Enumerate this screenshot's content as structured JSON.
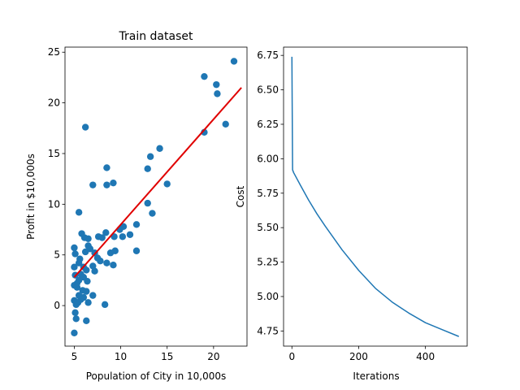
{
  "figure": {
    "background": "#ffffff"
  },
  "chart_data": [
    {
      "type": "scatter",
      "title": "Train dataset",
      "xlabel": "Population of City in 10,000s",
      "ylabel": "Profit in $10,000s",
      "xlim": [
        4.0,
        23.6
      ],
      "ylim": [
        -4.0,
        25.5
      ],
      "xticks": [
        5,
        10,
        15,
        20
      ],
      "yticks": [
        0,
        5,
        10,
        15,
        20,
        25
      ],
      "series": [
        {
          "kind": "scatter",
          "color": "#1f77b4",
          "points": [
            [
              22.2,
              24.1
            ],
            [
              19.0,
              22.6
            ],
            [
              20.3,
              21.8
            ],
            [
              20.4,
              20.9
            ],
            [
              21.3,
              17.9
            ],
            [
              19.0,
              17.1
            ],
            [
              6.2,
              17.6
            ],
            [
              14.2,
              15.5
            ],
            [
              13.2,
              14.7
            ],
            [
              12.9,
              13.5
            ],
            [
              8.5,
              13.6
            ],
            [
              9.2,
              12.1
            ],
            [
              8.5,
              11.9
            ],
            [
              7.0,
              11.9
            ],
            [
              15.0,
              12.0
            ],
            [
              12.9,
              10.1
            ],
            [
              5.5,
              9.2
            ],
            [
              13.4,
              9.1
            ],
            [
              11.7,
              8.0
            ],
            [
              10.3,
              7.8
            ],
            [
              9.9,
              7.5
            ],
            [
              11.0,
              7.0
            ],
            [
              7.6,
              6.8
            ],
            [
              8.0,
              6.7
            ],
            [
              9.3,
              6.8
            ],
            [
              10.2,
              6.8
            ],
            [
              6.1,
              6.7
            ],
            [
              5.8,
              7.1
            ],
            [
              6.5,
              6.6
            ],
            [
              8.4,
              7.2
            ],
            [
              6.5,
              5.9
            ],
            [
              6.2,
              5.3
            ],
            [
              6.7,
              5.6
            ],
            [
              7.2,
              5.2
            ],
            [
              8.9,
              5.2
            ],
            [
              9.4,
              5.4
            ],
            [
              11.7,
              5.4
            ],
            [
              5.0,
              5.7
            ],
            [
              5.1,
              5.1
            ],
            [
              5.6,
              4.6
            ],
            [
              5.5,
              4.2
            ],
            [
              7.5,
              4.7
            ],
            [
              7.8,
              4.4
            ],
            [
              8.5,
              4.2
            ],
            [
              9.2,
              4.0
            ],
            [
              5.0,
              3.8
            ],
            [
              6.0,
              3.8
            ],
            [
              6.3,
              3.5
            ],
            [
              7.0,
              3.9
            ],
            [
              7.2,
              3.4
            ],
            [
              5.1,
              3.0
            ],
            [
              5.7,
              3.1
            ],
            [
              6.0,
              2.8
            ],
            [
              6.4,
              2.4
            ],
            [
              5.5,
              2.5
            ],
            [
              5.3,
              2.2
            ],
            [
              5.0,
              2.0
            ],
            [
              5.3,
              1.8
            ],
            [
              5.9,
              1.5
            ],
            [
              6.3,
              1.4
            ],
            [
              5.5,
              1.0
            ],
            [
              6.0,
              0.8
            ],
            [
              7.0,
              1.0
            ],
            [
              5.7,
              0.6
            ],
            [
              5.0,
              0.5
            ],
            [
              5.4,
              0.3
            ],
            [
              5.2,
              0.1
            ],
            [
              6.5,
              0.3
            ],
            [
              8.3,
              0.1
            ],
            [
              5.1,
              -0.7
            ],
            [
              5.2,
              -1.3
            ],
            [
              6.3,
              -1.5
            ],
            [
              5.0,
              -2.7
            ]
          ]
        },
        {
          "kind": "line",
          "color": "#e00000",
          "points": [
            [
              5.0,
              2.8
            ],
            [
              23.0,
              21.5
            ]
          ]
        }
      ]
    },
    {
      "type": "line",
      "title": "",
      "xlabel": "Iterations",
      "ylabel": "Cost",
      "xlim": [
        -25,
        525
      ],
      "ylim": [
        4.64,
        6.81
      ],
      "xticks": [
        0,
        200,
        400
      ],
      "yticks": [
        4.75,
        5.0,
        5.25,
        5.5,
        5.75,
        6.0,
        6.25,
        6.5,
        6.75
      ],
      "ytick_labels": [
        "4.75",
        "5.00",
        "5.25",
        "5.50",
        "5.75",
        "6.00",
        "6.25",
        "6.50",
        "6.75"
      ],
      "series": [
        {
          "kind": "line",
          "color": "#1f77b4",
          "x": [
            0,
            2,
            5,
            25,
            50,
            75,
            100,
            150,
            200,
            250,
            300,
            350,
            400,
            450,
            500
          ],
          "y": [
            6.74,
            5.92,
            5.9,
            5.81,
            5.7,
            5.6,
            5.51,
            5.34,
            5.19,
            5.06,
            4.96,
            4.88,
            4.81,
            4.76,
            4.71
          ]
        }
      ]
    }
  ]
}
